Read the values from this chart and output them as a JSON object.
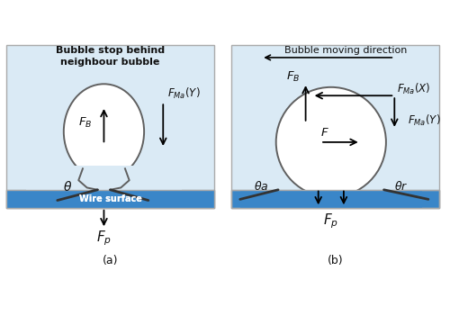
{
  "fig_width": 5.0,
  "fig_height": 3.51,
  "bg_light_blue": "#daeaf5",
  "bg_wire_blue": "#3a86c8",
  "bubble_edge": "#606060",
  "bubble_fill": "#ffffff",
  "wire_label_color": "#ffffff",
  "text_color": "#111111",
  "border_color": "#aaaaaa",
  "panel_a_title_line1": "Bubble stop behind",
  "panel_a_title_line2": "neighbour bubble",
  "panel_b_title": "Bubble moving direction",
  "label_a": "(a)",
  "label_b": "(b)"
}
